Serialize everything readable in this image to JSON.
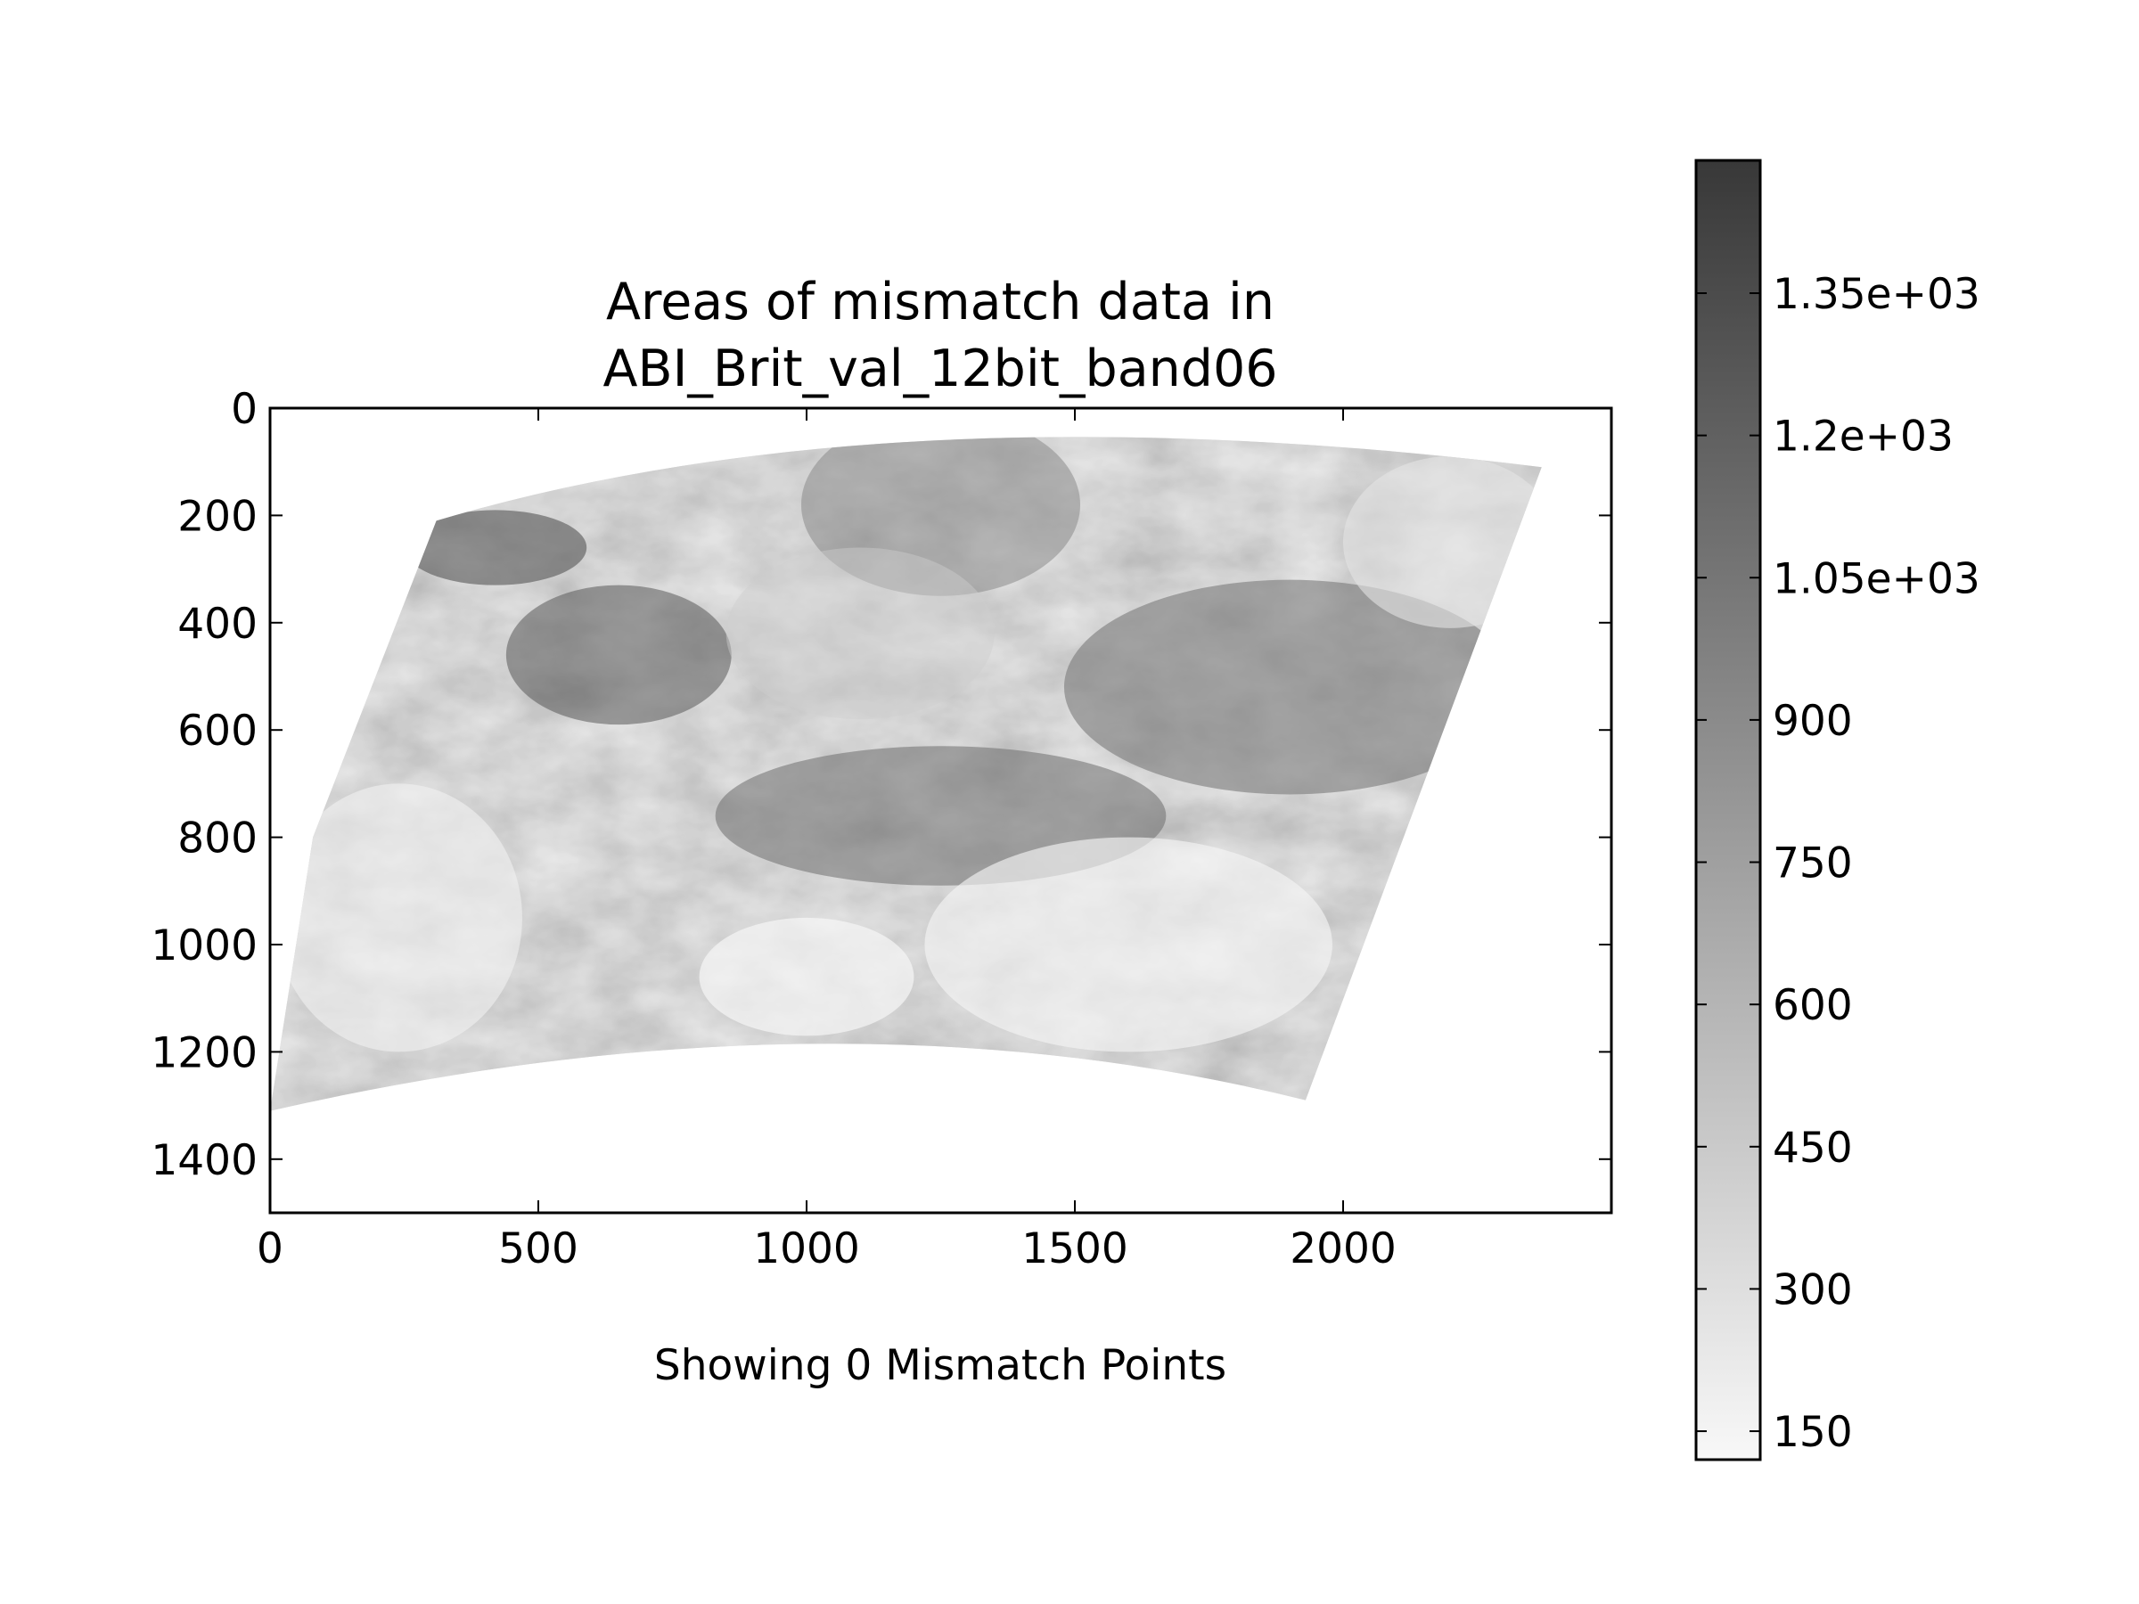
{
  "chart_data": {
    "type": "heatmap",
    "title_line1": "Areas of mismatch data in",
    "title_line2": "ABI_Brit_val_12bit_band06",
    "xlabel": "Showing 0 Mismatch Points",
    "ylabel": "",
    "xlim": [
      0,
      2500
    ],
    "ylim": [
      1500,
      0
    ],
    "x_ticks": [
      0,
      500,
      1000,
      1500,
      2000
    ],
    "x_tick_labels": [
      "0",
      "500",
      "1000",
      "1500",
      "2000"
    ],
    "y_ticks": [
      0,
      200,
      400,
      600,
      800,
      1000,
      1200,
      1400
    ],
    "y_tick_labels": [
      "0",
      "200",
      "400",
      "600",
      "800",
      "1000",
      "1200",
      "1400"
    ],
    "colormap": "Greys",
    "colorbar": {
      "range": [
        120,
        1490
      ],
      "ticks": [
        150,
        300,
        450,
        600,
        750,
        900,
        1050,
        1200,
        1350
      ],
      "tick_labels": [
        "150",
        "300",
        "450",
        "600",
        "750",
        "900",
        "1.05e+03",
        "1.2e+03",
        "1.35e+03"
      ],
      "color_low": "#f8f8f8",
      "color_high": "#383838"
    },
    "mismatch_points": 0,
    "image_footprint_corners": {
      "top_left": [
        310,
        210
      ],
      "top_right": [
        2370,
        110
      ],
      "bottom_right": [
        1930,
        1290
      ],
      "bottom_left": [
        0,
        1310
      ]
    }
  }
}
